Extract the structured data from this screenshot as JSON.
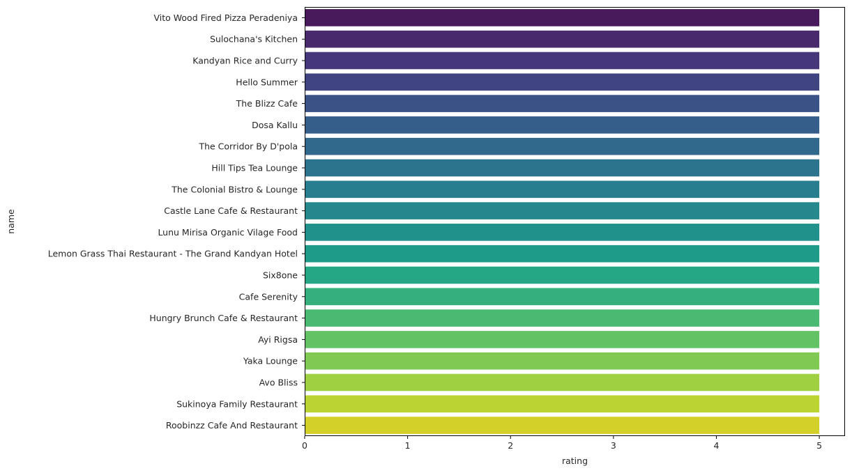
{
  "chart_data": {
    "type": "bar",
    "orientation": "horizontal",
    "title": "",
    "xlabel": "rating",
    "ylabel": "name",
    "xlim": [
      0,
      5.25
    ],
    "xticks": [
      0,
      1,
      2,
      3,
      4,
      5
    ],
    "xtick_labels": [
      "0",
      "1",
      "2",
      "3",
      "4",
      "5"
    ],
    "grid": false,
    "legend": null,
    "colormap": "viridis",
    "categories": [
      "Vito Wood Fired Pizza Peradeniya",
      "Sulochana's Kitchen",
      "Kandyan Rice and Curry",
      "Hello Summer",
      "The Blizz Cafe",
      "Dosa Kallu",
      "The Corridor By D'pola",
      "Hill Tips Tea Lounge",
      "The Colonial Bistro & Lounge",
      "Castle Lane Cafe & Restaurant",
      "Lunu Mirisa Organic Vilage Food",
      "Lemon Grass Thai Restaurant - The Grand Kandyan Hotel",
      "Six8one",
      "Cafe Serenity",
      "Hungry Brunch Cafe & Restaurant",
      "Ayi Rigsa",
      "Yaka Lounge",
      "Avo Bliss",
      "Sukinoya Family Restaurant",
      "Roobinzz Cafe And Restaurant"
    ],
    "values": [
      5,
      5,
      5,
      5,
      5,
      5,
      5,
      5,
      5,
      5,
      5,
      5,
      5,
      5,
      5,
      5,
      5,
      5,
      5,
      5
    ],
    "colors": [
      "#481a5c",
      "#482a6c",
      "#453779",
      "#404582",
      "#3b5287",
      "#355e8b",
      "#30698c",
      "#2c738d",
      "#287e8e",
      "#24888d",
      "#21918c",
      "#1f9c89",
      "#25a684",
      "#35b07c",
      "#4ab972",
      "#63c364",
      "#80ca53",
      "#9ed041",
      "#bcd432",
      "#d4d02a"
    ]
  }
}
